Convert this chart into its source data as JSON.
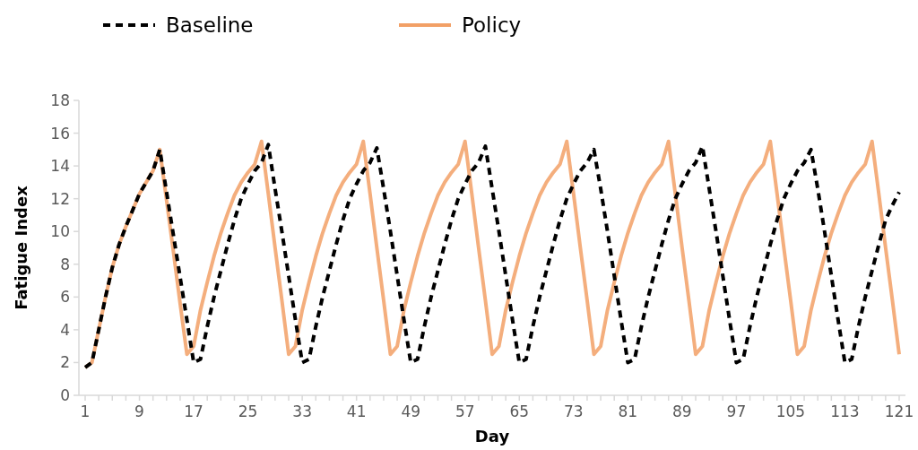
{
  "chart_data": {
    "type": "line",
    "xlabel": "Day",
    "ylabel": "Fatigue Index",
    "categories": [
      "1",
      null,
      null,
      null,
      null,
      null,
      null,
      null,
      "9",
      null,
      null,
      null,
      null,
      null,
      null,
      null,
      "17",
      null,
      null,
      null,
      null,
      null,
      null,
      null,
      "25",
      null,
      null,
      null,
      null,
      null,
      null,
      null,
      "33",
      null,
      null,
      null,
      null,
      null,
      null,
      null,
      "41",
      null,
      null,
      null,
      null,
      null,
      null,
      null,
      "49",
      null,
      null,
      null,
      null,
      null,
      null,
      null,
      "57",
      null,
      null,
      null,
      null,
      null,
      null,
      null,
      "65",
      null,
      null,
      null,
      null,
      null,
      null,
      null,
      "73",
      null,
      null,
      null,
      null,
      null,
      null,
      null,
      "81",
      null,
      null,
      null,
      null,
      null,
      null,
      null,
      "89",
      null,
      null,
      null,
      null,
      null,
      null,
      null,
      "97",
      null,
      null,
      null,
      null,
      null,
      null,
      null,
      "105",
      null,
      null,
      null,
      null,
      null,
      null,
      null,
      "113",
      null,
      null,
      null,
      null,
      null,
      null,
      null,
      "121"
    ],
    "series": [
      {
        "name": "Baseline",
        "color": "#000000",
        "line_style": "dashed",
        "values": [
          1.7,
          2.0,
          4.0,
          6.0,
          7.8,
          9.2,
          10.3,
          11.3,
          12.3,
          13.0,
          13.7,
          15.0,
          12.4,
          9.8,
          7.2,
          4.6,
          2.0,
          2.2,
          4.2,
          6.0,
          7.6,
          9.2,
          10.7,
          12.0,
          12.9,
          13.7,
          14.2,
          15.3,
          12.6,
          10.0,
          7.3,
          4.6,
          2.0,
          2.2,
          4.2,
          6.0,
          7.6,
          9.2,
          10.7,
          12.0,
          12.9,
          13.7,
          14.2,
          15.1,
          12.6,
          10.0,
          7.3,
          4.6,
          2.0,
          2.2,
          4.2,
          6.0,
          7.6,
          9.2,
          10.7,
          12.0,
          12.9,
          13.7,
          14.2,
          15.2,
          12.6,
          10.0,
          7.3,
          4.6,
          2.0,
          2.2,
          4.2,
          6.0,
          7.6,
          9.2,
          10.7,
          12.0,
          12.9,
          13.7,
          14.2,
          15.0,
          12.6,
          10.0,
          7.3,
          4.6,
          2.0,
          2.2,
          4.2,
          6.0,
          7.6,
          9.2,
          10.7,
          12.0,
          12.9,
          13.7,
          14.2,
          15.2,
          12.6,
          10.0,
          7.3,
          4.6,
          2.0,
          2.2,
          4.2,
          6.0,
          7.6,
          9.2,
          10.7,
          12.0,
          12.9,
          13.7,
          14.2,
          15.0,
          12.6,
          10.0,
          7.3,
          4.6,
          2.0,
          2.2,
          4.2,
          6.0,
          7.6,
          9.2,
          10.7,
          11.6,
          12.4
        ]
      },
      {
        "name": "Policy",
        "color": "#f2a066",
        "line_style": "solid",
        "values": [
          1.7,
          2.0,
          4.0,
          6.0,
          7.8,
          9.2,
          10.3,
          11.3,
          12.3,
          13.0,
          13.7,
          15.0,
          11.9,
          8.8,
          5.6,
          2.5,
          3.0,
          5.2,
          6.9,
          8.5,
          9.9,
          11.1,
          12.2,
          13.0,
          13.6,
          14.1,
          15.5,
          12.3,
          9.0,
          5.8,
          2.5,
          3.0,
          5.2,
          6.9,
          8.5,
          9.9,
          11.1,
          12.2,
          13.0,
          13.6,
          14.1,
          15.5,
          12.3,
          9.0,
          5.8,
          2.5,
          3.0,
          5.2,
          6.9,
          8.5,
          9.9,
          11.1,
          12.2,
          13.0,
          13.6,
          14.1,
          15.5,
          12.3,
          9.0,
          5.8,
          2.5,
          3.0,
          5.2,
          6.9,
          8.5,
          9.9,
          11.1,
          12.2,
          13.0,
          13.6,
          14.1,
          15.5,
          12.3,
          9.0,
          5.8,
          2.5,
          3.0,
          5.2,
          6.9,
          8.5,
          9.9,
          11.1,
          12.2,
          13.0,
          13.6,
          14.1,
          15.5,
          12.3,
          9.0,
          5.8,
          2.5,
          3.0,
          5.2,
          6.9,
          8.5,
          9.9,
          11.1,
          12.2,
          13.0,
          13.6,
          14.1,
          15.5,
          12.3,
          9.0,
          5.8,
          2.5,
          3.0,
          5.2,
          6.9,
          8.5,
          9.9,
          11.1,
          12.2,
          13.0,
          13.6,
          14.1,
          15.5,
          12.3,
          9.0,
          5.8,
          2.5
        ]
      }
    ],
    "ylim": [
      0,
      18
    ],
    "yticks": [
      0,
      2,
      4,
      6,
      8,
      10,
      12,
      14,
      16,
      18
    ],
    "grid": false,
    "legend": "top left",
    "marker": "none"
  }
}
